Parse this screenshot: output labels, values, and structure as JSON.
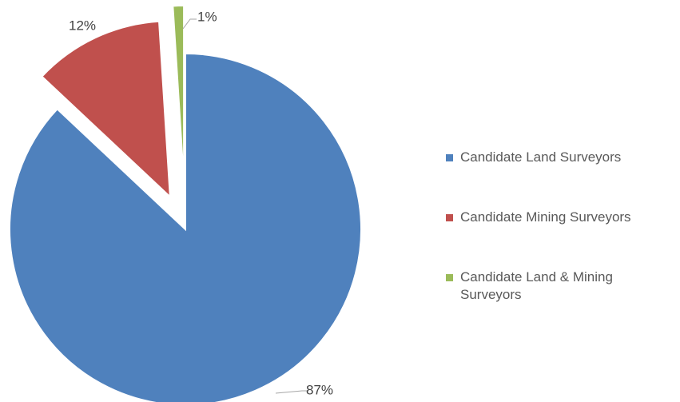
{
  "chart_data": {
    "type": "pie",
    "categories": [
      "Candidate Land Surveyors",
      "Candidate Mining Surveyors",
      "Candidate Land & Mining Surveyors"
    ],
    "values": [
      87,
      12,
      1
    ],
    "value_labels": [
      "87%",
      "12%",
      "1%"
    ],
    "colors": [
      "#4f81bd",
      "#c0504d",
      "#9bbb59"
    ],
    "legend": "right"
  }
}
